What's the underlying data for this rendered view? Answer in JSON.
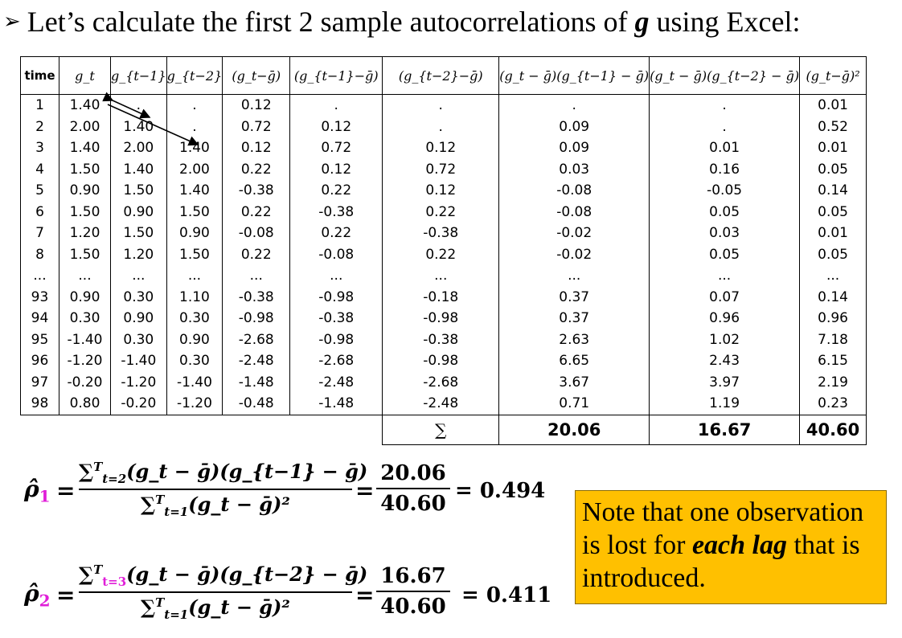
{
  "heading": {
    "bullet": "➢",
    "text_before": "Let’s calculate the first 2 sample autocorrelations of ",
    "variable": "g",
    "text_after": " using Excel:"
  },
  "table": {
    "headers": [
      "time",
      "g_t",
      "g_{t−1}",
      "g_{t−2}",
      "(g_t−ḡ)",
      "(g_{t−1}−ḡ)",
      "(g_{t−2}−ḡ)",
      "(g_t − ḡ)(g_{t−1} − ḡ)",
      "(g_t − ḡ)(g_{t−2} − ḡ)",
      "(g_t−ḡ)²"
    ],
    "rows": [
      [
        "1",
        "1.40",
        ".",
        ".",
        "0.12",
        ".",
        ".",
        ".",
        ".",
        "0.01"
      ],
      [
        "2",
        "2.00",
        "1.40",
        ".",
        "0.72",
        "0.12",
        ".",
        "0.09",
        ".",
        "0.52"
      ],
      [
        "3",
        "1.40",
        "2.00",
        "1.40",
        "0.12",
        "0.72",
        "0.12",
        "0.09",
        "0.01",
        "0.01"
      ],
      [
        "4",
        "1.50",
        "1.40",
        "2.00",
        "0.22",
        "0.12",
        "0.72",
        "0.03",
        "0.16",
        "0.05"
      ],
      [
        "5",
        "0.90",
        "1.50",
        "1.40",
        "-0.38",
        "0.22",
        "0.12",
        "-0.08",
        "-0.05",
        "0.14"
      ],
      [
        "6",
        "1.50",
        "0.90",
        "1.50",
        "0.22",
        "-0.38",
        "0.22",
        "-0.08",
        "0.05",
        "0.05"
      ],
      [
        "7",
        "1.20",
        "1.50",
        "0.90",
        "-0.08",
        "0.22",
        "-0.38",
        "-0.02",
        "0.03",
        "0.01"
      ],
      [
        "8",
        "1.50",
        "1.20",
        "1.50",
        "0.22",
        "-0.08",
        "0.22",
        "-0.02",
        "0.05",
        "0.05"
      ],
      [
        "...",
        "...",
        "...",
        "...",
        "...",
        "...",
        "...",
        "...",
        "...",
        "..."
      ],
      [
        "93",
        "0.90",
        "0.30",
        "1.10",
        "-0.38",
        "-0.98",
        "-0.18",
        "0.37",
        "0.07",
        "0.14"
      ],
      [
        "94",
        "0.30",
        "0.90",
        "0.30",
        "-0.98",
        "-0.38",
        "-0.98",
        "0.37",
        "0.96",
        "0.96"
      ],
      [
        "95",
        "-1.40",
        "0.30",
        "0.90",
        "-2.68",
        "-0.98",
        "-0.38",
        "2.63",
        "1.02",
        "7.18"
      ],
      [
        "96",
        "-1.20",
        "-1.40",
        "0.30",
        "-2.48",
        "-2.68",
        "-0.98",
        "6.65",
        "2.43",
        "6.15"
      ],
      [
        "97",
        "-0.20",
        "-1.20",
        "-1.40",
        "-1.48",
        "-2.48",
        "-2.68",
        "3.67",
        "3.97",
        "2.19"
      ],
      [
        "98",
        "0.80",
        "-0.20",
        "-1.20",
        "-0.48",
        "-1.48",
        "-2.48",
        "0.71",
        "1.19",
        "0.23"
      ]
    ],
    "sum_symbol": "∑",
    "sums": [
      "20.06",
      "16.67",
      "40.60"
    ]
  },
  "formula1": {
    "rho": "ρ̂",
    "rho_sub": "1",
    "num_lower": "t=2",
    "num_upper": "T",
    "numerator_body": "(g_t − ḡ)(g_{t−1} − ḡ)",
    "den_lower": "t=1",
    "den_upper": "T",
    "denominator_body": "(g_t − ḡ)²",
    "value_num": "20.06",
    "value_den": "40.60",
    "result": "= 0.494"
  },
  "formula2": {
    "rho": "ρ̂",
    "rho_sub": "2",
    "num_lower": "t=3",
    "num_upper": "T",
    "numerator_body": "(g_t − ḡ)(g_{t−2} − ḡ)",
    "den_lower": "t=1",
    "den_upper": "T",
    "denominator_body": "(g_t − ḡ)²",
    "value_num": "16.67",
    "value_den": "40.60",
    "result": "= 0.411"
  },
  "note": {
    "text_before": "Note that one observation is lost for ",
    "emphasis": "each lag",
    "text_after": " that is introduced.",
    "background": "#ffc000"
  },
  "colors": {
    "lag_highlight": "#e01ed8"
  }
}
